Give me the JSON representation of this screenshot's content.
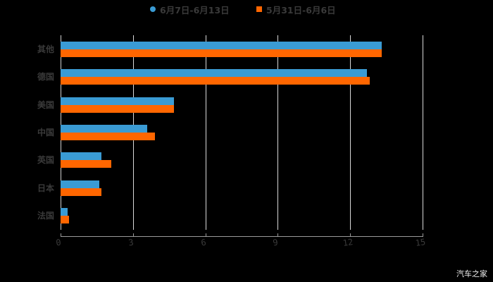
{
  "legend": [
    {
      "label": "6月7日-6月13日",
      "color": "#3A9BD4",
      "marker": "circle"
    },
    {
      "label": "5月31日-6月6日",
      "color": "#FF6600",
      "marker": "square"
    }
  ],
  "watermark": "汽车之家",
  "chart_data": {
    "type": "bar",
    "orientation": "horizontal",
    "title": "",
    "xlabel": "",
    "ylabel": "",
    "categories": [
      "其他",
      "德国",
      "美国",
      "中国",
      "英国",
      "日本",
      "法国"
    ],
    "series": [
      {
        "name": "6月7日-6月13日",
        "color": "#3A9BD4",
        "values": [
          13.3,
          12.7,
          4.7,
          3.6,
          1.7,
          1.6,
          0.3
        ]
      },
      {
        "name": "5月31日-6月6日",
        "color": "#FF6600",
        "values": [
          13.3,
          12.8,
          4.7,
          3.9,
          2.1,
          1.7,
          0.35
        ]
      }
    ],
    "xlim": [
      0,
      15
    ],
    "x_ticks": [
      "0",
      "3",
      "6",
      "9",
      "12",
      "15"
    ],
    "grid": "vertical",
    "legend_position": "top"
  }
}
